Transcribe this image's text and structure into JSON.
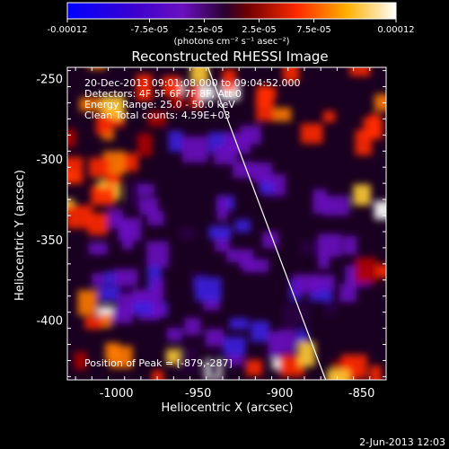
{
  "colorbar": {
    "tick_labels": [
      "-0.00012",
      "-7.5e-05",
      "-2.5e-05",
      "2.5e-05",
      "7.5e-05",
      "0.00012"
    ],
    "units": "(photons cm⁻² s⁻¹ asec⁻²)",
    "min": -0.00012,
    "max": 0.00012
  },
  "image": {
    "title": "Reconstructed RHESSI Image",
    "info_lines": [
      "20-Dec-2013 09:01:08.000 to 09:04:52.000",
      "Detectors: 4F 5F 6F 7F 8F, Att 0",
      "Energy Range: 25.0 - 50.0 keV",
      "Clean    Total counts: 4.59E+03"
    ],
    "peak_label": "Position of Peak = [-879,-287]",
    "timestamp": "2-Jun-2013 12:03"
  },
  "chart_data": {
    "type": "heatmap",
    "title": "Reconstructed RHESSI Image",
    "xlabel": "Heliocentric X (arcsec)",
    "ylabel": "Heliocentric Y (arcsec)",
    "xlim": [
      -1030,
      -835
    ],
    "ylim": [
      -437,
      -243
    ],
    "xticks": [
      -1000,
      -950,
      -900,
      -850
    ],
    "xtick_labels": [
      "-1000",
      "-950",
      "-900",
      "-850"
    ],
    "yticks": [
      -400,
      -350,
      -300,
      -250
    ],
    "ytick_labels": [
      "-400",
      "-350",
      "-300",
      "-250"
    ],
    "colormap": "blue-purple-black-red-yellow-white",
    "peak_position": [
      -879,
      -287
    ],
    "limb_line": {
      "x1": -944,
      "y1": -243,
      "x2": -872,
      "y2": -437
    }
  }
}
